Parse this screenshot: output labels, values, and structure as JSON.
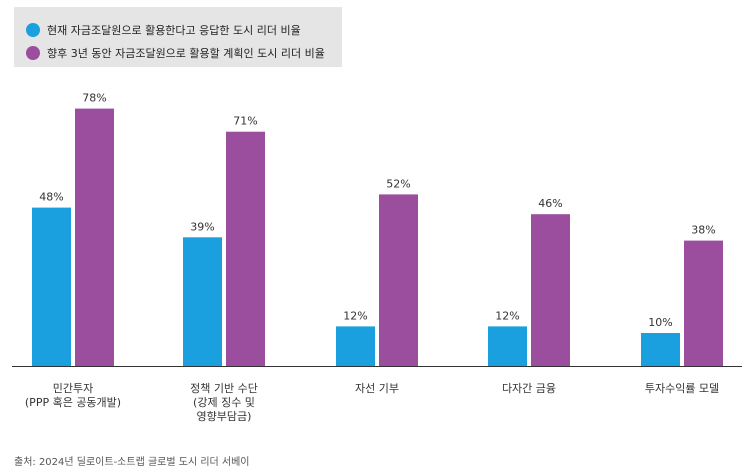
{
  "legend": {
    "items": [
      {
        "label": "현재 자금조달원으로 활용한다고 응답한 도시 리더 비율",
        "color": "#1a9fdf"
      },
      {
        "label": "향후 3년 동안 자금조달원으로 활용할 계획인 도시 리더 비율",
        "color": "#9b4d9e"
      }
    ]
  },
  "chart_data": {
    "type": "bar",
    "categories": [
      [
        "민간투자",
        "(PPP 혹은 공동개발)"
      ],
      [
        "정책 기반 수단",
        "(강제 징수 및",
        "영향부담금)"
      ],
      [
        "자선 기부"
      ],
      [
        "다자간 금융"
      ],
      [
        "투자수익률 모델"
      ]
    ],
    "series": [
      {
        "name": "현재 자금조달원으로 활용한다고 응답한 도시 리더 비율",
        "values": [
          48,
          39,
          12,
          12,
          10
        ],
        "color": "#1a9fdf"
      },
      {
        "name": "향후 3년 동안 자금조달원으로 활용할 계획인 도시 리더 비율",
        "values": [
          78,
          71,
          52,
          46,
          38
        ],
        "color": "#9b4d9e"
      }
    ],
    "value_suffix": "%",
    "ylim": [
      0,
      100
    ],
    "grid": false,
    "legend_position": "top-left"
  },
  "source": "출처: 2024년 딜로이트-소트랩 글로벌 도시 리더 서베이"
}
